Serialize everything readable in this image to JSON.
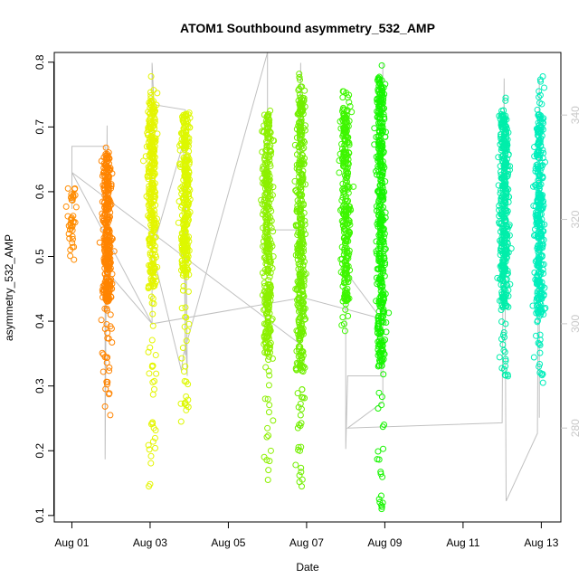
{
  "chart_data": {
    "type": "scatter",
    "title": "ATOM1 Southbound asymmetry_532_AMP",
    "xlabel": "Date",
    "ylabel": "asymmetry_532_AMP",
    "x_ticks": [
      {
        "day": 1,
        "label": "Aug 01"
      },
      {
        "day": 3,
        "label": "Aug 03"
      },
      {
        "day": 5,
        "label": "Aug 05"
      },
      {
        "day": 7,
        "label": "Aug 07"
      },
      {
        "day": 9,
        "label": "Aug 09"
      },
      {
        "day": 11,
        "label": "Aug 11"
      },
      {
        "day": 13,
        "label": "Aug 13"
      }
    ],
    "xlim_days": [
      0.55,
      13.5
    ],
    "y_ticks": [
      "0.1",
      "0.2",
      "0.3",
      "0.4",
      "0.5",
      "0.6",
      "0.7",
      "0.8"
    ],
    "ylim": [
      0.09,
      0.815
    ],
    "y2_ticks": [
      "280",
      "300",
      "320",
      "340"
    ],
    "y2lim": [
      262,
      352
    ],
    "marker": "open-circle",
    "grid": false,
    "clusters": [
      {
        "day": 1.0,
        "color": "#ff8c00",
        "core": [
          0.5,
          0.61
        ],
        "range": [
          0.495,
          0.605
        ],
        "n": 40
      },
      {
        "day": 1.9,
        "color": "#ff8400",
        "core": [
          0.43,
          0.66
        ],
        "range": [
          0.255,
          0.668
        ],
        "n": 360
      },
      {
        "day": 3.05,
        "color": "#e4f500",
        "core": [
          0.45,
          0.74
        ],
        "range": [
          0.145,
          0.778
        ],
        "n": 360
      },
      {
        "day": 3.9,
        "color": "#ddf800",
        "core": [
          0.47,
          0.72
        ],
        "range": [
          0.245,
          0.722
        ],
        "n": 330
      },
      {
        "day": 6.0,
        "color": "#8cf000",
        "core": [
          0.35,
          0.72
        ],
        "range": [
          0.155,
          0.725
        ],
        "n": 380
      },
      {
        "day": 6.85,
        "color": "#72ef00",
        "core": [
          0.32,
          0.75
        ],
        "range": [
          0.145,
          0.782
        ],
        "n": 420
      },
      {
        "day": 8.0,
        "color": "#3ef600",
        "core": [
          0.43,
          0.73
        ],
        "range": [
          0.385,
          0.755
        ],
        "n": 300
      },
      {
        "day": 8.9,
        "color": "#17f500",
        "core": [
          0.33,
          0.78
        ],
        "range": [
          0.11,
          0.795
        ],
        "n": 460
      },
      {
        "day": 12.05,
        "color": "#00eeaa",
        "core": [
          0.42,
          0.72
        ],
        "range": [
          0.315,
          0.745
        ],
        "n": 400
      },
      {
        "day": 12.95,
        "color": "#00eebb",
        "core": [
          0.41,
          0.72
        ],
        "range": [
          0.305,
          0.778
        ],
        "n": 350
      }
    ],
    "secondary_line": {
      "color": "#c0c0c0",
      "points": [
        [
          1.0,
          329
        ],
        [
          1.0,
          322
        ],
        [
          1.0,
          334
        ],
        [
          1.85,
          334
        ],
        [
          1.85,
          274
        ],
        [
          1.9,
          338
        ],
        [
          1.9,
          310
        ],
        [
          3.05,
          300
        ],
        [
          3.05,
          350
        ],
        [
          3.1,
          342
        ],
        [
          3.9,
          341
        ],
        [
          3.9,
          294
        ],
        [
          3.85,
          336
        ],
        [
          3.9,
          298
        ],
        [
          3.95,
          290
        ],
        [
          3.9,
          336
        ],
        [
          3.05,
          314
        ],
        [
          3.8,
          291
        ],
        [
          3.85,
          294
        ],
        [
          6.0,
          352
        ],
        [
          6.0,
          315
        ],
        [
          6.05,
          318
        ],
        [
          6.8,
          318
        ],
        [
          6.85,
          350
        ],
        [
          6.85,
          296
        ],
        [
          1.0,
          329
        ],
        [
          3.05,
          300
        ],
        [
          6.9,
          305
        ],
        [
          8.9,
          301
        ],
        [
          8.0,
          310
        ],
        [
          8.0,
          276
        ],
        [
          8.05,
          290
        ],
        [
          8.9,
          290
        ],
        [
          8.95,
          350
        ],
        [
          8.95,
          285
        ],
        [
          8.05,
          280
        ],
        [
          12.0,
          281
        ],
        [
          12.05,
          347
        ],
        [
          12.1,
          266
        ],
        [
          12.9,
          279
        ],
        [
          12.95,
          347
        ],
        [
          12.95,
          282
        ]
      ]
    }
  }
}
